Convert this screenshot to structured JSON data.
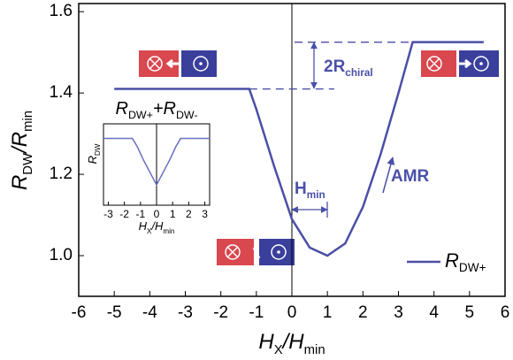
{
  "chart_data": [
    {
      "type": "line",
      "x_label": [
        "H",
        "X",
        "/H",
        "min"
      ],
      "y_label": [
        "R",
        "DW",
        "/R",
        "min"
      ],
      "x": [
        -5,
        -1.2,
        -1,
        -0.5,
        0,
        0.5,
        1,
        1.5,
        2,
        2.5,
        3,
        3.4,
        5.4
      ],
      "series": [
        {
          "name": [
            "R",
            "DW+"
          ],
          "color": "#4b4fa6",
          "values": [
            1.41,
            1.41,
            1.36,
            1.22,
            1.09,
            1.02,
            1.0,
            1.03,
            1.12,
            1.25,
            1.4,
            1.525,
            1.525
          ]
        }
      ],
      "xlim": [
        -6,
        6
      ],
      "ylim": [
        0.9,
        1.62
      ],
      "xticks": [
        -6,
        -5,
        -4,
        -3,
        -2,
        -1,
        0,
        1,
        2,
        3,
        4,
        5,
        6
      ],
      "yticks": [
        {
          "value": 1,
          "label": "1.0"
        },
        1.2,
        1.4,
        1.6
      ],
      "annotations": [
        [
          "2R",
          "chiral"
        ],
        [
          "H",
          "min"
        ],
        [
          "AMR"
        ]
      ],
      "legend": "lower right"
    },
    {
      "type": "line",
      "title": [
        "R",
        "DW+",
        "+R",
        "DW-"
      ],
      "x_label": [
        "H",
        "X",
        "/H",
        "min"
      ],
      "y_label": [
        "R",
        "DW"
      ],
      "x": [
        -3.3,
        -1.5,
        -1.2,
        -0.8,
        -0.4,
        0,
        0.4,
        0.8,
        1.2,
        1.5,
        3.3
      ],
      "series": [
        {
          "color": "#6a6fc0",
          "values": [
            0.82,
            0.82,
            0.72,
            0.55,
            0.4,
            0.25,
            0.4,
            0.55,
            0.72,
            0.82,
            0.82
          ]
        }
      ],
      "xlim": [
        -3.3,
        3.3
      ],
      "ylim": [
        0,
        1
      ],
      "xticks": [
        -3,
        -2,
        -1,
        0,
        1,
        2,
        3
      ]
    }
  ]
}
